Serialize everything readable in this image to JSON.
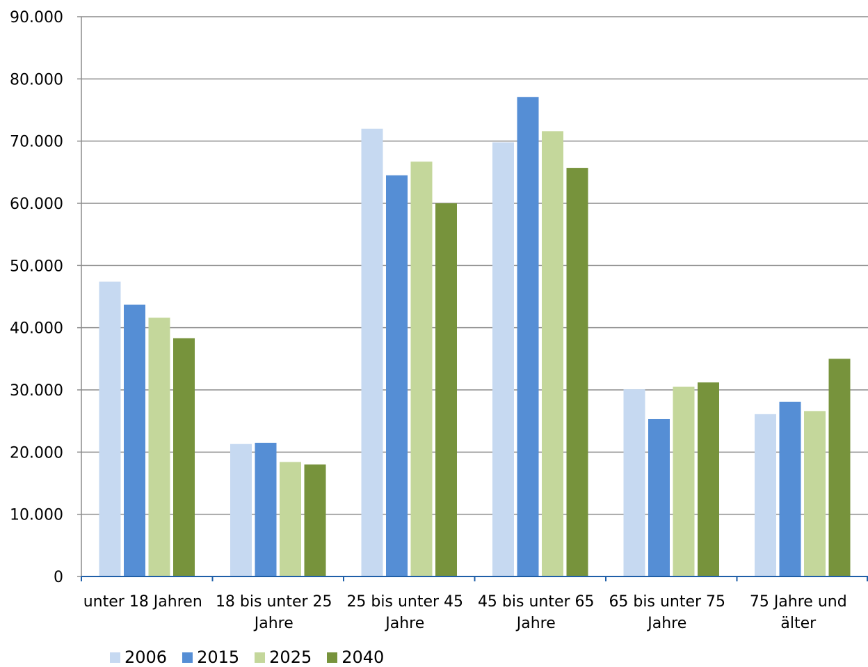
{
  "chart_data": {
    "type": "bar",
    "categories": [
      [
        "unter 18 Jahren"
      ],
      [
        "18 bis unter 25",
        "Jahre"
      ],
      [
        "25 bis unter 45",
        "Jahre"
      ],
      [
        "45 bis unter 65",
        "Jahre"
      ],
      [
        "65 bis unter 75",
        "Jahre"
      ],
      [
        "75 Jahre und",
        "älter"
      ]
    ],
    "series": [
      {
        "name": "2006",
        "color": "#c6d9f1",
        "values": [
          47400,
          21300,
          72000,
          69800,
          30100,
          26100
        ]
      },
      {
        "name": "2015",
        "color": "#558ed5",
        "values": [
          43700,
          21500,
          64500,
          77100,
          25300,
          28100
        ]
      },
      {
        "name": "2025",
        "color": "#c4d79b",
        "values": [
          41600,
          18400,
          66700,
          71600,
          30500,
          26600
        ]
      },
      {
        "name": "2040",
        "color": "#77933c",
        "values": [
          38300,
          18000,
          60000,
          65700,
          31200,
          35000
        ]
      }
    ],
    "ylim": [
      0,
      90000
    ],
    "yticks": [
      "0",
      "10.000",
      "20.000",
      "30.000",
      "40.000",
      "50.000",
      "60.000",
      "70.000",
      "80.000",
      "90.000"
    ],
    "grid": true,
    "legend_position": "bottom-left",
    "title": "",
    "xlabel": "",
    "ylabel": ""
  }
}
